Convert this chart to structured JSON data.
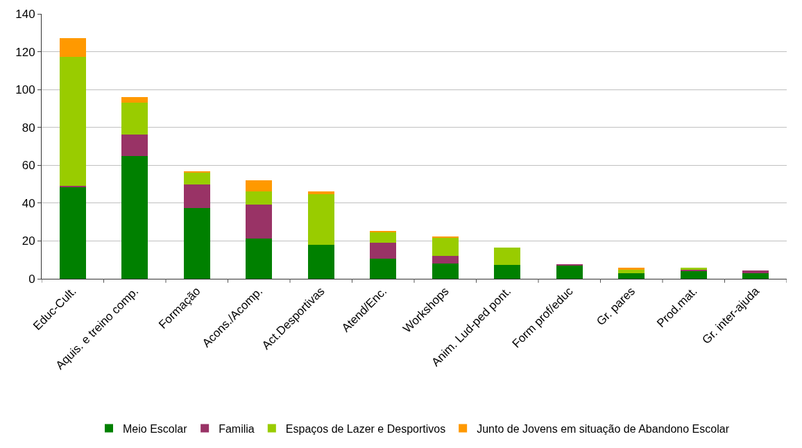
{
  "chart_data": {
    "type": "bar",
    "stacked": true,
    "categories": [
      "Educ-Cult.",
      "Aquis. e treino comp.",
      "Formação",
      "Acons./Acomp.",
      "Act.Desportivas",
      "Atend/Enc.",
      "Workshops",
      "Anim. Lud-ped pont.",
      "Form prof/educ",
      "Gr. pares",
      "Prod.mat.",
      "Gr. inter-ajuda"
    ],
    "series": [
      {
        "name": "Meio Escolar",
        "color": "#008000",
        "values": [
          48.3,
          64.7,
          37.4,
          21.3,
          17.8,
          10.8,
          7.9,
          7.2,
          7.1,
          2.8,
          4.3,
          2.8
        ]
      },
      {
        "name": "Familia",
        "color": "#993366",
        "values": [
          0.9,
          11.4,
          12.4,
          17.8,
          0,
          8.2,
          4.1,
          0,
          0.7,
          0,
          0.4,
          1.5
        ]
      },
      {
        "name": "Espaços de Lazer e Desportivos",
        "color": "#99cc00",
        "values": [
          68,
          17,
          6.1,
          7.1,
          27,
          5.6,
          9.7,
          9.3,
          0,
          1.9,
          1.0,
          0
        ]
      },
      {
        "name": "Junto de Jovens em situação de Abandono Escolar",
        "color": "#ff9900",
        "values": [
          10,
          2.9,
          1,
          5.7,
          1.4,
          0.5,
          0.7,
          0,
          0,
          1.0,
          0,
          0
        ]
      }
    ],
    "ylim": [
      0,
      140
    ],
    "yticks": [
      0,
      20,
      40,
      60,
      80,
      100,
      120,
      140
    ],
    "grid": "y",
    "legend": "bottom"
  }
}
